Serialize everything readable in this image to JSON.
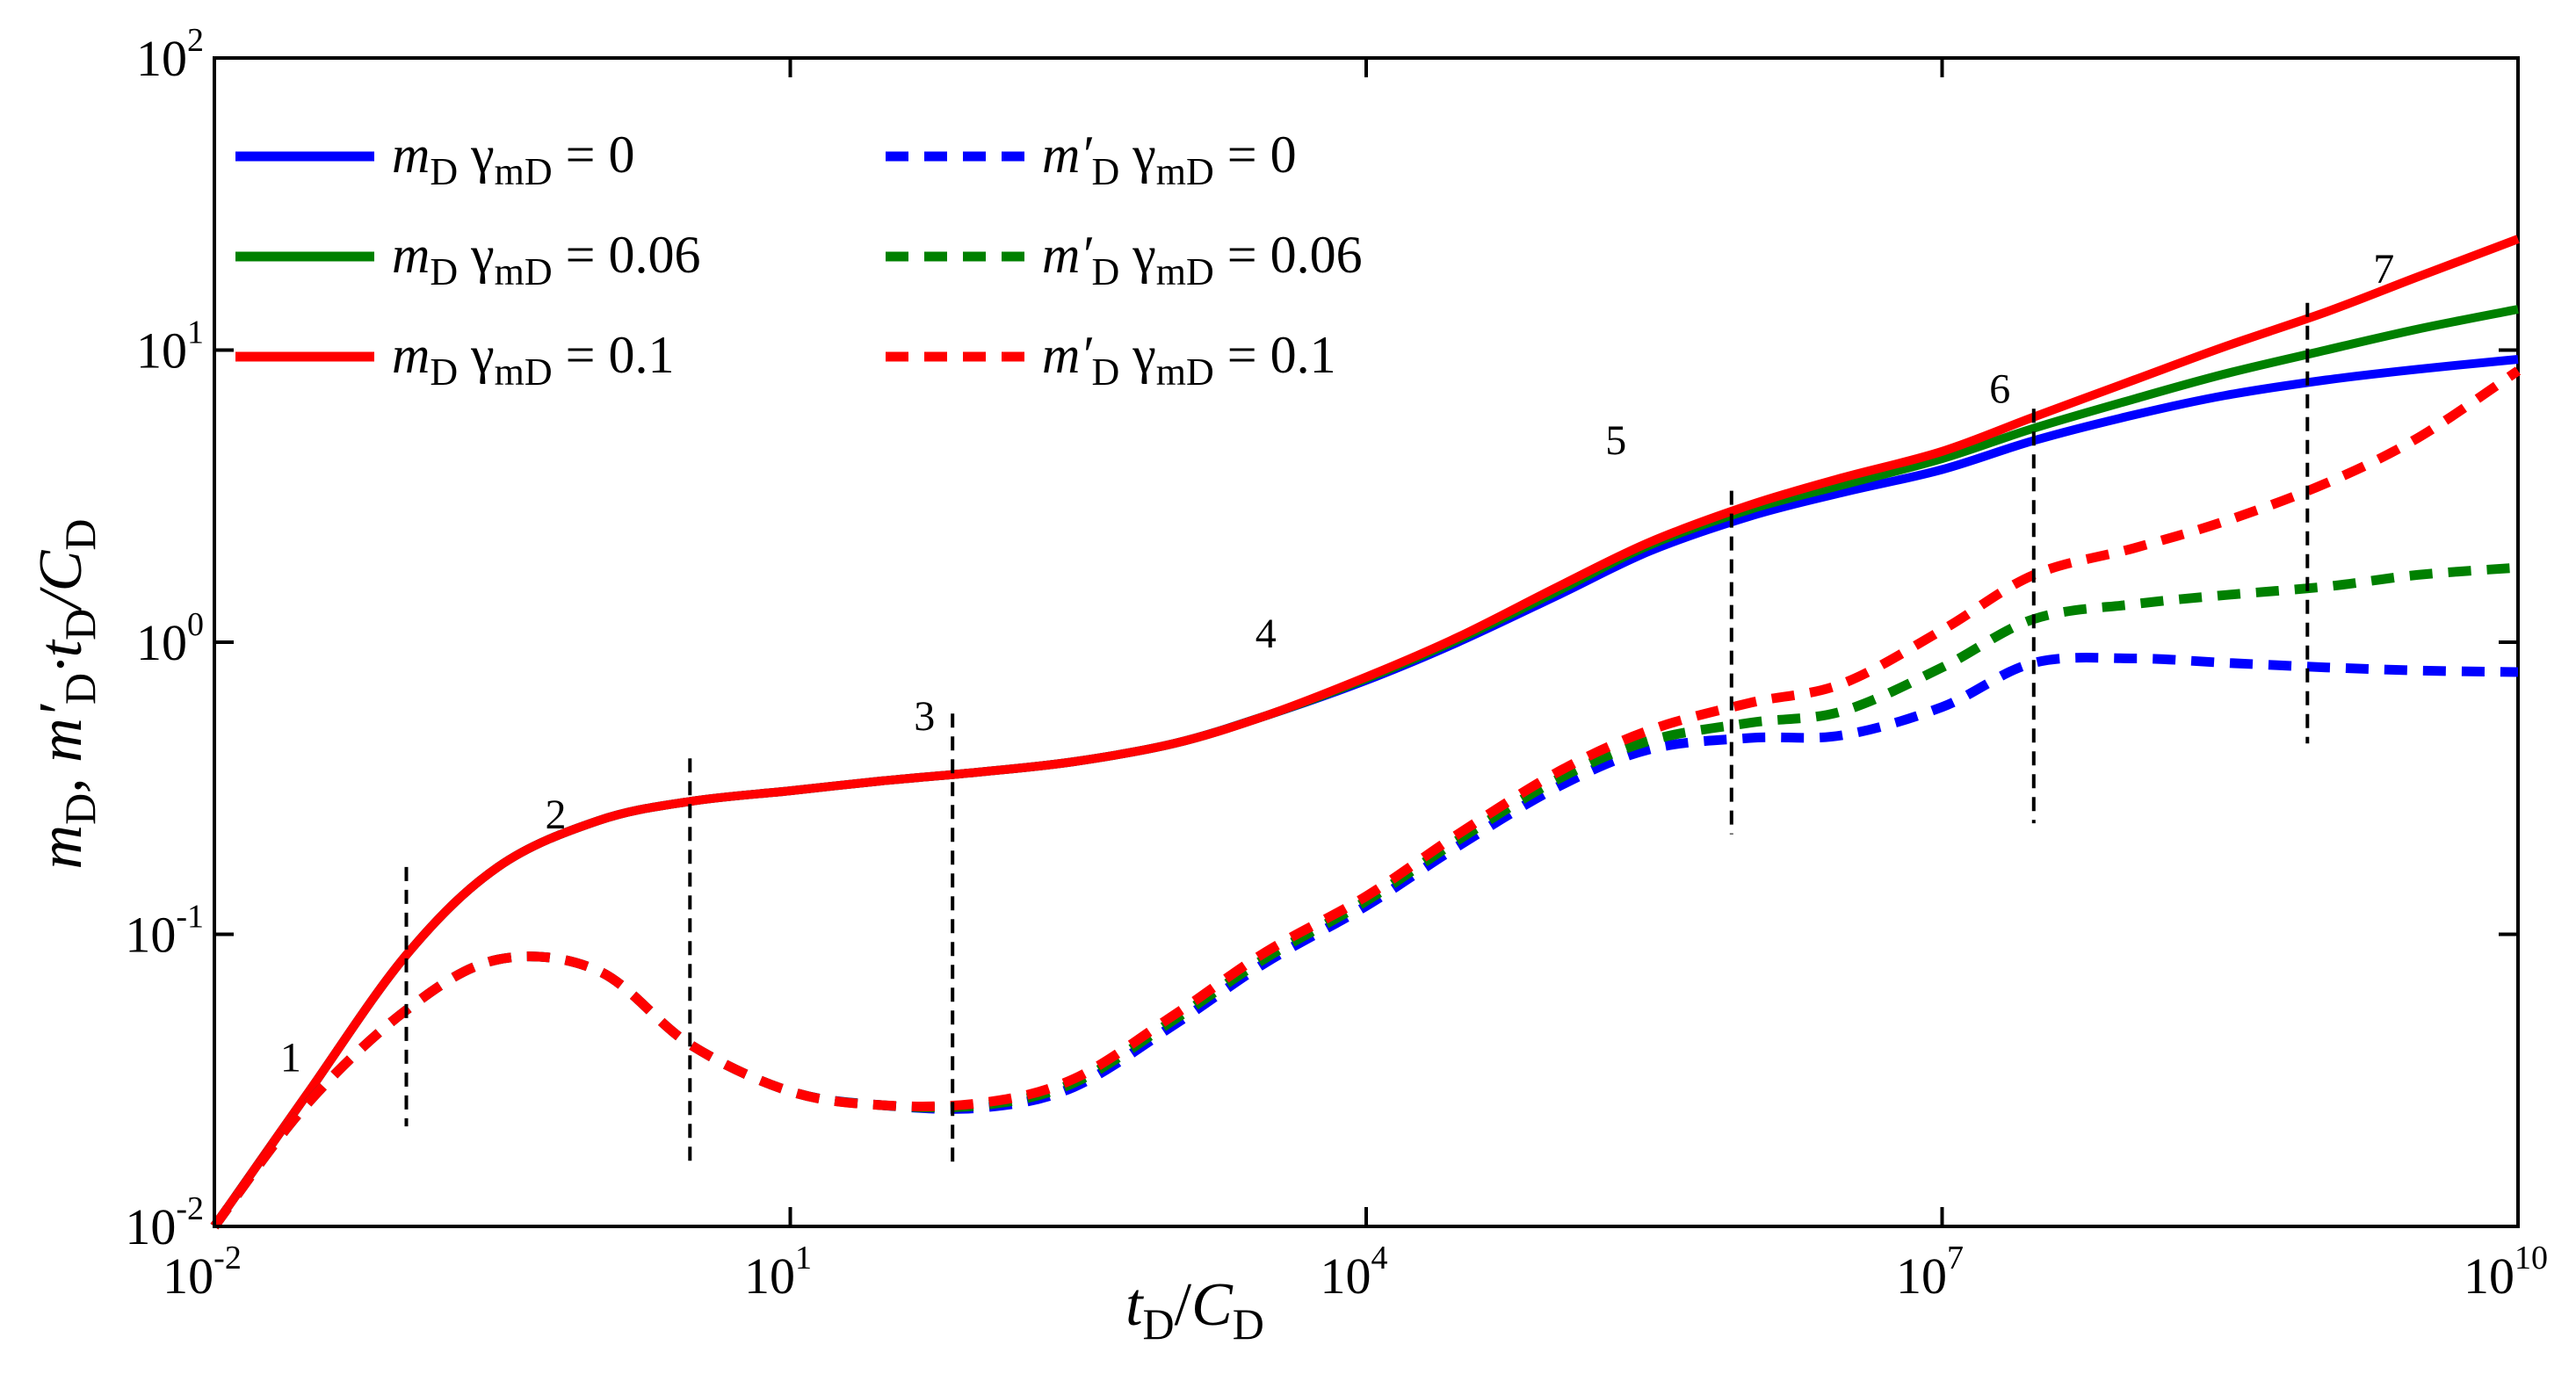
{
  "chart_data": {
    "type": "line",
    "scale": {
      "x": "log",
      "y": "log"
    },
    "xlim": [
      0.01,
      10000000000
    ],
    "ylim": [
      0.01,
      100
    ],
    "grid": false,
    "legend_position": "top-left",
    "xlabel": {
      "main": "t",
      "sub": "D",
      "slash": "/",
      "main2": "C",
      "sub2": "D"
    },
    "ylabel": {
      "p1": "m",
      "s1": "D",
      "p2": ", m′",
      "s2": "D",
      "p3": "·t",
      "s3": "D",
      "p4": "/C",
      "s4": "D"
    },
    "x_ticks": [
      {
        "value": 0.01,
        "base": "10",
        "exp": "-2"
      },
      {
        "value": 10,
        "base": "10",
        "exp": "1"
      },
      {
        "value": 10000,
        "base": "10",
        "exp": "4"
      },
      {
        "value": 10000000,
        "base": "10",
        "exp": "7"
      },
      {
        "value": 10000000000,
        "base": "10",
        "exp": "10"
      }
    ],
    "y_ticks": [
      {
        "value": 0.01,
        "base": "10",
        "exp": "-2"
      },
      {
        "value": 0.1,
        "base": "10",
        "exp": "-1"
      },
      {
        "value": 1,
        "base": "10",
        "exp": "0"
      },
      {
        "value": 10,
        "base": "10",
        "exp": "1"
      },
      {
        "value": 100,
        "base": "10",
        "exp": "2"
      }
    ],
    "series": [
      {
        "id": "mD-0",
        "legend": {
          "var": "m",
          "varsub": "D",
          "gamma": "γ",
          "gsub": "mD",
          "eq": " = 0"
        },
        "color": "#0000ff",
        "dashed": false,
        "x": [
          0.01,
          0.03,
          0.1,
          0.3,
          1,
          3,
          10,
          30,
          100,
          300,
          1000,
          3000,
          10000,
          30000,
          100000,
          300000,
          1000000,
          3000000,
          10000000,
          30000000,
          100000000,
          300000000,
          1000000000,
          3000000000,
          10000000000
        ],
        "y": [
          0.01,
          0.028,
          0.085,
          0.17,
          0.245,
          0.285,
          0.31,
          0.335,
          0.36,
          0.39,
          0.45,
          0.56,
          0.74,
          1.0,
          1.45,
          2.05,
          2.7,
          3.25,
          3.9,
          4.9,
          6.0,
          7.0,
          7.9,
          8.6,
          9.3
        ]
      },
      {
        "id": "mD-0.06",
        "legend": {
          "var": "m",
          "varsub": "D",
          "gamma": "γ",
          "gsub": "mD",
          "eq": " = 0.06"
        },
        "color": "#008000",
        "dashed": false,
        "x": [
          0.01,
          0.03,
          0.1,
          0.3,
          1,
          3,
          10,
          30,
          100,
          300,
          1000,
          3000,
          10000,
          30000,
          100000,
          300000,
          1000000,
          3000000,
          10000000,
          30000000,
          100000000,
          300000000,
          1000000000,
          3000000000,
          10000000000
        ],
        "y": [
          0.01,
          0.028,
          0.085,
          0.17,
          0.245,
          0.285,
          0.31,
          0.335,
          0.36,
          0.39,
          0.45,
          0.56,
          0.75,
          1.02,
          1.5,
          2.15,
          2.85,
          3.45,
          4.25,
          5.4,
          6.8,
          8.3,
          10.0,
          11.8,
          13.8
        ]
      },
      {
        "id": "mD-0.1",
        "legend": {
          "var": "m",
          "varsub": "D",
          "gamma": "γ",
          "gsub": "mD",
          "eq": " = 0.1"
        },
        "color": "#ff0000",
        "dashed": false,
        "x": [
          0.01,
          0.03,
          0.1,
          0.3,
          1,
          3,
          10,
          30,
          100,
          300,
          1000,
          3000,
          10000,
          30000,
          100000,
          300000,
          1000000,
          3000000,
          10000000,
          30000000,
          100000000,
          300000000,
          1000000000,
          3000000000,
          10000000000
        ],
        "y": [
          0.01,
          0.028,
          0.085,
          0.17,
          0.245,
          0.285,
          0.31,
          0.335,
          0.36,
          0.39,
          0.45,
          0.56,
          0.76,
          1.04,
          1.55,
          2.2,
          2.95,
          3.65,
          4.5,
          5.9,
          7.9,
          10.3,
          13.5,
          17.8,
          24.0
        ]
      },
      {
        "id": "dmD-0",
        "legend": {
          "var": "m′",
          "varsub": "D",
          "gamma": "γ",
          "gsub": "mD",
          "eq": " = 0"
        },
        "color": "#0000ff",
        "dashed": true,
        "x": [
          0.01,
          0.03,
          0.1,
          0.3,
          1,
          3,
          10,
          30,
          100,
          300,
          1000,
          3000,
          10000,
          30000,
          100000,
          300000,
          1000000,
          3000000,
          10000000,
          30000000,
          100000000,
          300000000,
          1000000000,
          3000000000,
          10000000000
        ],
        "y": [
          0.01,
          0.026,
          0.055,
          0.082,
          0.075,
          0.042,
          0.029,
          0.026,
          0.0255,
          0.03,
          0.049,
          0.08,
          0.125,
          0.2,
          0.32,
          0.43,
          0.47,
          0.48,
          0.6,
          0.85,
          0.88,
          0.85,
          0.82,
          0.8,
          0.79
        ]
      },
      {
        "id": "dmD-0.06",
        "legend": {
          "var": "m′",
          "varsub": "D",
          "gamma": "γ",
          "gsub": "mD",
          "eq": " = 0.06"
        },
        "color": "#008000",
        "dashed": true,
        "x": [
          0.01,
          0.03,
          0.1,
          0.3,
          1,
          3,
          10,
          30,
          100,
          300,
          1000,
          3000,
          10000,
          30000,
          100000,
          300000,
          1000000,
          3000000,
          10000000,
          30000000,
          100000000,
          300000000,
          1000000000,
          3000000000,
          10000000000
        ],
        "y": [
          0.01,
          0.026,
          0.055,
          0.082,
          0.075,
          0.042,
          0.029,
          0.026,
          0.026,
          0.031,
          0.051,
          0.083,
          0.13,
          0.21,
          0.34,
          0.46,
          0.53,
          0.58,
          0.82,
          1.2,
          1.35,
          1.45,
          1.55,
          1.7,
          1.8
        ]
      },
      {
        "id": "dmD-0.1",
        "legend": {
          "var": "m′",
          "varsub": "D",
          "gamma": "γ",
          "gsub": "mD",
          "eq": " = 0.1"
        },
        "color": "#ff0000",
        "dashed": true,
        "x": [
          0.01,
          0.03,
          0.1,
          0.3,
          1,
          3,
          10,
          30,
          100,
          300,
          1000,
          3000,
          10000,
          30000,
          100000,
          300000,
          1000000,
          3000000,
          10000000,
          30000000,
          100000000,
          300000000,
          1000000000,
          3000000000,
          10000000000
        ],
        "y": [
          0.01,
          0.026,
          0.055,
          0.082,
          0.075,
          0.042,
          0.029,
          0.026,
          0.0265,
          0.032,
          0.053,
          0.087,
          0.135,
          0.22,
          0.36,
          0.5,
          0.62,
          0.72,
          1.1,
          1.7,
          2.1,
          2.6,
          3.5,
          5.0,
          8.5
        ]
      }
    ],
    "regions": [
      {
        "label": "1",
        "label_x": 0.025,
        "label_y": 0.034
      },
      {
        "label": "2",
        "label_x": 0.6,
        "label_y": 0.23
      },
      {
        "label": "3",
        "label_x": 50,
        "label_y": 0.5
      },
      {
        "label": "4",
        "label_x": 3000,
        "label_y": 0.96
      },
      {
        "label": "5",
        "label_x": 200000,
        "label_y": 4.4
      },
      {
        "label": "6",
        "label_x": 20000000,
        "label_y": 6.6
      },
      {
        "label": "7",
        "label_x": 2000000000,
        "label_y": 17
      }
    ],
    "dividers": [
      {
        "x": 0.1,
        "y_low": 0.022,
        "y_high": 0.17
      },
      {
        "x": 3,
        "y_low": 0.016,
        "y_high": 0.4
      },
      {
        "x": 70,
        "y_low": 0.016,
        "y_high": 0.57
      },
      {
        "x": 800000,
        "y_low": 0.22,
        "y_high": 3.3
      },
      {
        "x": 30000000,
        "y_low": 0.24,
        "y_high": 6.3
      },
      {
        "x": 800000000,
        "y_low": 0.45,
        "y_high": 14.5
      }
    ]
  }
}
